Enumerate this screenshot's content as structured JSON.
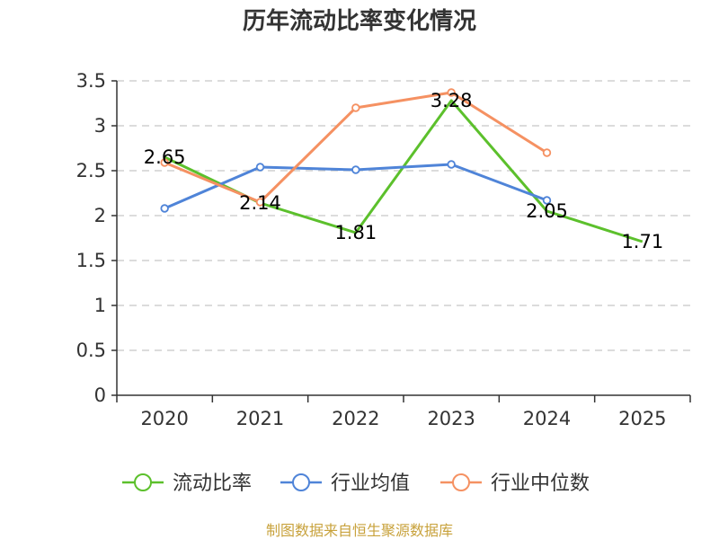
{
  "chart_data": {
    "type": "line",
    "title": "历年流动比率变化情况",
    "categories": [
      "2020",
      "2021",
      "2022",
      "2023",
      "2024",
      "2025"
    ],
    "ylim": [
      0,
      3.5
    ],
    "yticks": [
      "0",
      "0.5",
      "1",
      "1.5",
      "2",
      "2.5",
      "3",
      "3.5"
    ],
    "grid": true,
    "legend_position": "bottom",
    "series": [
      {
        "name": "流动比率",
        "color": "#5cc02c",
        "values": [
          2.65,
          2.14,
          1.81,
          3.28,
          2.05,
          1.71
        ],
        "labels": [
          "2.65",
          "2.14",
          "1.81",
          "3.28",
          "2.05",
          "1.71"
        ]
      },
      {
        "name": "行业均值",
        "color": "#4f84d8",
        "values": [
          2.08,
          2.54,
          2.51,
          2.57,
          2.17,
          null
        ]
      },
      {
        "name": "行业中位数",
        "color": "#f59162",
        "values": [
          2.59,
          2.15,
          3.2,
          3.37,
          2.7,
          null
        ]
      }
    ],
    "source": "制图数据来自恒生聚源数据库"
  }
}
